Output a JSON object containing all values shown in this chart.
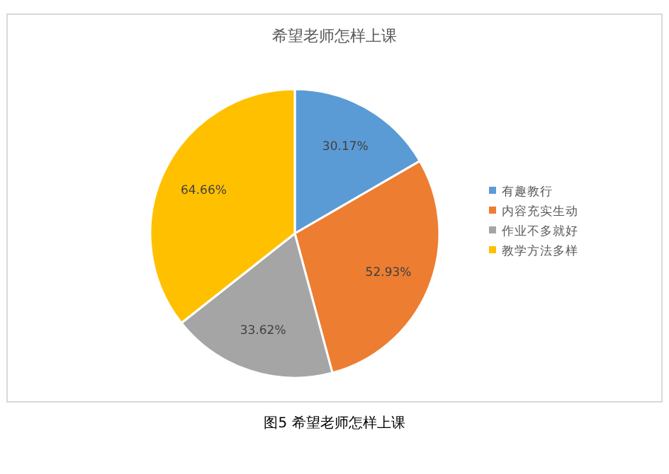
{
  "chart_data": {
    "type": "pie",
    "title": "希望老师怎样上课",
    "categories": [
      "有趣教行",
      "内容充实生动",
      "作业不多就好",
      "教学方法多样"
    ],
    "values": [
      30.17,
      52.93,
      33.62,
      64.66
    ],
    "value_labels": [
      "30.17%",
      "52.93%",
      "33.62%",
      "64.66%"
    ],
    "colors": [
      "#5b9bd5",
      "#ed7d31",
      "#a5a5a5",
      "#ffc000"
    ],
    "legend": "right",
    "annotations": [
      "图5 希望老师怎样上课"
    ]
  }
}
